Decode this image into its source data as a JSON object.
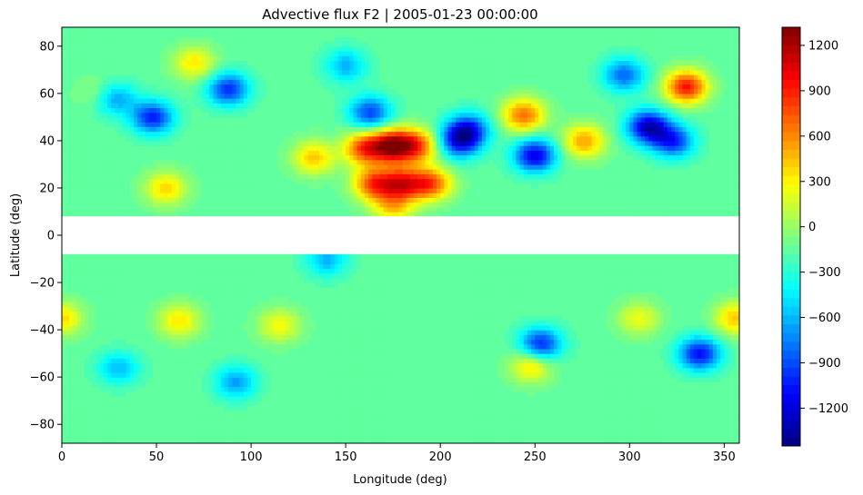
{
  "chart_data": {
    "type": "heatmap",
    "title": "Advective flux F2 | 2005-01-23 00:00:00",
    "xlabel": "Longitude (deg)",
    "ylabel": "Latitude (deg)",
    "xlim": [
      0,
      358
    ],
    "ylim": [
      -88,
      88
    ],
    "xticks": [
      0,
      50,
      100,
      150,
      200,
      250,
      300,
      350
    ],
    "yticks": [
      -80,
      -60,
      -40,
      -20,
      0,
      20,
      40,
      60,
      80
    ],
    "masked_band": [
      -8,
      8
    ],
    "colormap": "jet",
    "colorbar": {
      "vmin": -1450,
      "vmax": 1320,
      "ticks": [
        -1200,
        -900,
        -600,
        -300,
        0,
        300,
        600,
        900,
        1200
      ]
    },
    "background_value": -150,
    "features": [
      {
        "lon": 175,
        "lat": 38,
        "value": 1300
      },
      {
        "lon": 160,
        "lat": 37,
        "value": 900
      },
      {
        "lon": 188,
        "lat": 38,
        "value": 800
      },
      {
        "lon": 165,
        "lat": 22,
        "value": 880
      },
      {
        "lon": 180,
        "lat": 22,
        "value": 950
      },
      {
        "lon": 195,
        "lat": 22,
        "value": 850
      },
      {
        "lon": 175,
        "lat": 12,
        "value": 500
      },
      {
        "lon": 330,
        "lat": 63,
        "value": 1050
      },
      {
        "lon": 244,
        "lat": 51,
        "value": 800
      },
      {
        "lon": 276,
        "lat": 40,
        "value": 650
      },
      {
        "lon": 133,
        "lat": 33,
        "value": 550
      },
      {
        "lon": 70,
        "lat": 73,
        "value": 450
      },
      {
        "lon": 55,
        "lat": 20,
        "value": 500
      },
      {
        "lon": 20,
        "lat": 60,
        "value": 200
      },
      {
        "lon": 248,
        "lat": -55,
        "value": 500
      },
      {
        "lon": 62,
        "lat": -36,
        "value": 450
      },
      {
        "lon": 115,
        "lat": -38,
        "value": 400
      },
      {
        "lon": 0,
        "lat": -35,
        "value": 500
      },
      {
        "lon": 356,
        "lat": -35,
        "value": 550
      },
      {
        "lon": 305,
        "lat": -35,
        "value": 350
      },
      {
        "lon": 210,
        "lat": 40,
        "value": -900
      },
      {
        "lon": 215,
        "lat": 45,
        "value": -800
      },
      {
        "lon": 310,
        "lat": 46,
        "value": -1150
      },
      {
        "lon": 323,
        "lat": 40,
        "value": -850
      },
      {
        "lon": 250,
        "lat": 34,
        "value": -1050
      },
      {
        "lon": 48,
        "lat": 50,
        "value": -900
      },
      {
        "lon": 88,
        "lat": 62,
        "value": -850
      },
      {
        "lon": 28,
        "lat": 58,
        "value": -600
      },
      {
        "lon": 163,
        "lat": 52,
        "value": -800
      },
      {
        "lon": 150,
        "lat": 72,
        "value": -500
      },
      {
        "lon": 297,
        "lat": 68,
        "value": -700
      },
      {
        "lon": 337,
        "lat": -50,
        "value": -950
      },
      {
        "lon": 253,
        "lat": -46,
        "value": -900
      },
      {
        "lon": 92,
        "lat": -62,
        "value": -550
      },
      {
        "lon": 30,
        "lat": -56,
        "value": -450
      },
      {
        "lon": 140,
        "lat": -10,
        "value": -500
      }
    ]
  }
}
